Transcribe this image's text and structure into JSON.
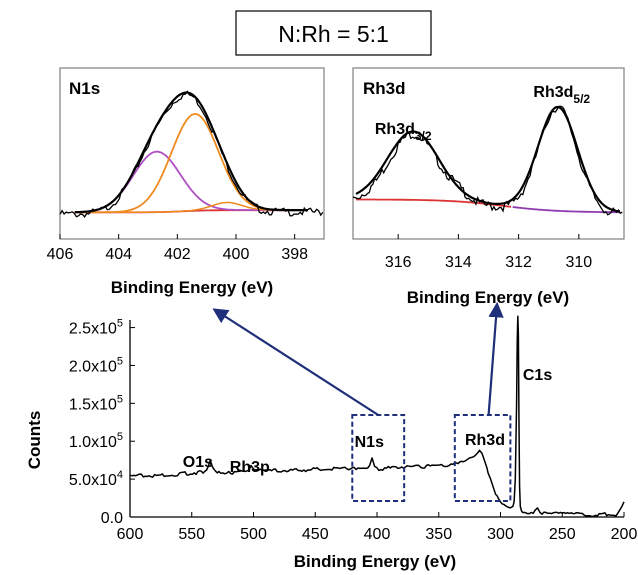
{
  "ratio_label": "N:Rh = 5:1",
  "colors": {
    "experimental": "#000000",
    "orange_fit": "#ef8a1f",
    "purple_fit": "#b04fc4",
    "background": "#dd3333",
    "background_purple": "#8e3bb0",
    "callout_box": "#1f2f7a",
    "arrow": "#1f2f7a"
  },
  "chart_data": [
    {
      "type": "line",
      "title": "N1s",
      "xlabel": "Binding Energy (eV)",
      "ylabel": "",
      "xlim": [
        406,
        397
      ],
      "x_reversed": true,
      "xticks": [
        "406",
        "404",
        "402",
        "400",
        "398"
      ],
      "yticks_shown": false,
      "series": [
        {
          "role": "experimental",
          "peaks": [
            {
              "center": 401.5,
              "height": 1.0
            }
          ]
        },
        {
          "role": "fit",
          "color": "orange",
          "center": 401.4,
          "height": 0.88,
          "fwhm": 1.9
        },
        {
          "role": "fit",
          "color": "purple",
          "center": 402.7,
          "height": 0.55,
          "fwhm": 1.9
        },
        {
          "role": "fit",
          "color": "orange",
          "center": 400.3,
          "height": 0.07,
          "fwhm": 1.2
        },
        {
          "role": "background",
          "color": "red"
        }
      ]
    },
    {
      "type": "line",
      "title": "Rh3d",
      "xlabel": "Binding Energy (eV)",
      "ylabel": "",
      "xlim": [
        317.5,
        308.5
      ],
      "x_reversed": true,
      "xticks": [
        "316",
        "314",
        "312",
        "310"
      ],
      "yticks_shown": false,
      "annotations": [
        {
          "main": "Rh3d",
          "sub": "3/2",
          "x": 315.5
        },
        {
          "main": "Rh3d",
          "sub": "5/2",
          "x": 310.7
        }
      ],
      "series": [
        {
          "role": "experimental",
          "peaks": [
            {
              "center": 315.5,
              "height": 0.58
            },
            {
              "center": 310.7,
              "height": 0.9
            }
          ]
        },
        {
          "role": "fit",
          "color": "black",
          "peaks": [
            {
              "center": 315.5,
              "height": 0.58
            },
            {
              "center": 310.7,
              "height": 0.88
            }
          ]
        },
        {
          "role": "background",
          "color": "red-to-purple"
        }
      ]
    },
    {
      "type": "line",
      "title": "",
      "xlabel": "Binding Energy (eV)",
      "ylabel": "Counts",
      "xlim": [
        600,
        200
      ],
      "ylim": [
        0,
        260000
      ],
      "x_reversed": true,
      "xticks": [
        "600",
        "550",
        "500",
        "450",
        "400",
        "350",
        "300",
        "250",
        "200"
      ],
      "yticks": [
        {
          "value": 0,
          "base": "0.0",
          "exp": ""
        },
        {
          "value": 50000,
          "base": "5.0x10",
          "exp": "4"
        },
        {
          "value": 100000,
          "base": "1.0x10",
          "exp": "5"
        },
        {
          "value": 150000,
          "base": "1.5x10",
          "exp": "5"
        },
        {
          "value": 200000,
          "base": "2.0x10",
          "exp": "5"
        },
        {
          "value": 250000,
          "base": "2.5x10",
          "exp": "5"
        }
      ],
      "peak_labels": [
        {
          "text": "O1s",
          "x": 545
        },
        {
          "text": "Rh3p",
          "x": 503
        },
        {
          "text": "N1s",
          "x": 403
        },
        {
          "text": "Rh3d",
          "x": 315
        },
        {
          "text": "C1s",
          "x": 270
        }
      ],
      "series": [
        {
          "role": "survey",
          "x": [
            600,
            580,
            560,
            545,
            538,
            535,
            532,
            528,
            520,
            505,
            502,
            499,
            490,
            470,
            450,
            420,
            406,
            404,
            402,
            400,
            380,
            360,
            340,
            330,
            325,
            320,
            317,
            315,
            313,
            311,
            310,
            308,
            306,
            304,
            300,
            296,
            294,
            292,
            290,
            289,
            288,
            287,
            286.5,
            286,
            285.5,
            285,
            284.5,
            284,
            283,
            282,
            280,
            275,
            272,
            270,
            268,
            260,
            250,
            240,
            220,
            205,
            200
          ],
          "y": [
            55000,
            56000,
            58000,
            60000,
            62000,
            75000,
            63000,
            60000,
            60000,
            61000,
            68000,
            62000,
            62000,
            63000,
            64000,
            65000,
            68000,
            78000,
            67000,
            65000,
            66000,
            68000,
            70000,
            73000,
            78000,
            82000,
            88000,
            84000,
            75000,
            65000,
            58000,
            50000,
            40000,
            30000,
            20000,
            15000,
            13000,
            12000,
            14000,
            20000,
            50000,
            150000,
            230000,
            265000,
            240000,
            120000,
            40000,
            14000,
            8000,
            6000,
            6000,
            6000,
            9000,
            12000,
            6000,
            5000,
            5000,
            4500,
            4500,
            5000,
            20000
          ]
        }
      ],
      "callouts": [
        {
          "label": "N1s",
          "x_range": [
            420,
            378
          ],
          "points_to": "N1s inset"
        },
        {
          "label": "Rh3d",
          "x_range": [
            337,
            292
          ],
          "points_to": "Rh3d inset"
        }
      ]
    }
  ]
}
